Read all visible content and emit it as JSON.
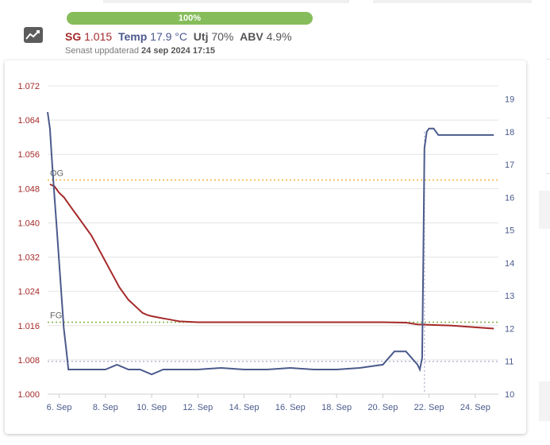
{
  "progress": {
    "label": "100%",
    "value": 1.0,
    "color": "#86bd5a"
  },
  "readings": {
    "sg_label": "SG",
    "sg_value": "1.015",
    "temp_label": "Temp",
    "temp_value": "17.9 °C",
    "att_label": "Utj",
    "att_value": "70%",
    "abv_label": "ABV",
    "abv_value": "4.9%"
  },
  "updated": {
    "prefix": "Senast uppdaterad",
    "date": "24 sep 2024 17:15"
  },
  "icons": {
    "app": "chart-line-icon"
  },
  "colors": {
    "sg": "#a52a2a",
    "temp": "#4b5a8c",
    "og_line": "#f2b33d",
    "fg_line": "#7cb342",
    "temp_ref": "#b8b8d8"
  },
  "chart_data": {
    "type": "line",
    "x_ticks": [
      "6. Sep",
      "8. Sep",
      "10. Sep",
      "12. Sep",
      "14. Sep",
      "16. Sep",
      "18. Sep",
      "20. Sep",
      "22. Sep",
      "24. Sep"
    ],
    "y_left_ticks": [
      "1.000",
      "1.008",
      "1.016",
      "1.024",
      "1.032",
      "1.040",
      "1.048",
      "1.056",
      "1.064",
      "1.072"
    ],
    "y_left_range": [
      1.0,
      1.072
    ],
    "y_right_ticks": [
      "10",
      "11",
      "12",
      "13",
      "14",
      "15",
      "16",
      "17",
      "18",
      "19"
    ],
    "y_right_range": [
      10,
      19.4
    ],
    "annotations": [
      {
        "label": "OG",
        "value": 1.05,
        "axis": "left",
        "style": "dotted"
      },
      {
        "label": "FG",
        "value": 1.0168,
        "axis": "left",
        "style": "dotted"
      }
    ],
    "reference_lines": [
      {
        "value": 11.0,
        "axis": "right",
        "style": "dotted"
      },
      {
        "x": 21.8,
        "style": "dotted-vertical"
      }
    ],
    "series": [
      {
        "axis": "left",
        "points": [
          [
            5.6,
            1.049
          ],
          [
            5.8,
            1.0485
          ],
          [
            6.0,
            1.047
          ],
          [
            6.2,
            1.046
          ],
          [
            6.4,
            1.0445
          ],
          [
            6.6,
            1.043
          ],
          [
            6.8,
            1.0415
          ],
          [
            7.0,
            1.04
          ],
          [
            7.2,
            1.0385
          ],
          [
            7.4,
            1.037
          ],
          [
            7.6,
            1.035
          ],
          [
            7.8,
            1.033
          ],
          [
            8.0,
            1.031
          ],
          [
            8.2,
            1.029
          ],
          [
            8.4,
            1.027
          ],
          [
            8.6,
            1.025
          ],
          [
            8.8,
            1.0235
          ],
          [
            9.0,
            1.022
          ],
          [
            9.2,
            1.021
          ],
          [
            9.4,
            1.02
          ],
          [
            9.6,
            1.019
          ],
          [
            9.8,
            1.0185
          ],
          [
            10.0,
            1.0182
          ],
          [
            10.2,
            1.018
          ],
          [
            10.4,
            1.0178
          ],
          [
            10.6,
            1.0176
          ],
          [
            10.8,
            1.0174
          ],
          [
            11.0,
            1.0172
          ],
          [
            11.2,
            1.017
          ],
          [
            12.0,
            1.0168
          ],
          [
            14.0,
            1.0168
          ],
          [
            16.0,
            1.0168
          ],
          [
            18.0,
            1.0168
          ],
          [
            20.0,
            1.0168
          ],
          [
            21.0,
            1.0167
          ],
          [
            21.5,
            1.0163
          ],
          [
            22.0,
            1.0162
          ],
          [
            23.0,
            1.016
          ],
          [
            24.0,
            1.0156
          ],
          [
            24.8,
            1.0153
          ]
        ]
      },
      {
        "axis": "right",
        "points": [
          [
            5.5,
            18.6
          ],
          [
            5.6,
            18.1
          ],
          [
            5.7,
            17.0
          ],
          [
            5.8,
            16.0
          ],
          [
            5.9,
            15.0
          ],
          [
            6.0,
            14.0
          ],
          [
            6.1,
            13.0
          ],
          [
            6.2,
            12.0
          ],
          [
            6.3,
            11.4
          ],
          [
            6.4,
            10.75
          ],
          [
            6.5,
            10.75
          ],
          [
            7.0,
            10.75
          ],
          [
            7.5,
            10.75
          ],
          [
            8.0,
            10.75
          ],
          [
            8.5,
            10.9
          ],
          [
            9.0,
            10.75
          ],
          [
            9.5,
            10.75
          ],
          [
            10.0,
            10.6
          ],
          [
            10.5,
            10.75
          ],
          [
            11.0,
            10.75
          ],
          [
            12.0,
            10.75
          ],
          [
            13.0,
            10.8
          ],
          [
            14.0,
            10.75
          ],
          [
            15.0,
            10.75
          ],
          [
            16.0,
            10.8
          ],
          [
            17.0,
            10.75
          ],
          [
            18.0,
            10.75
          ],
          [
            19.0,
            10.8
          ],
          [
            20.0,
            10.9
          ],
          [
            20.5,
            11.3
          ],
          [
            21.0,
            11.3
          ],
          [
            21.5,
            10.9
          ],
          [
            21.6,
            10.75
          ],
          [
            21.7,
            11.1
          ],
          [
            21.75,
            14.0
          ],
          [
            21.8,
            17.5
          ],
          [
            21.9,
            18.0
          ],
          [
            22.0,
            18.1
          ],
          [
            22.2,
            18.1
          ],
          [
            22.4,
            17.9
          ],
          [
            22.6,
            17.9
          ],
          [
            23.0,
            17.9
          ],
          [
            23.5,
            17.9
          ],
          [
            24.0,
            17.9
          ],
          [
            24.5,
            17.9
          ],
          [
            24.8,
            17.9
          ]
        ]
      }
    ]
  }
}
